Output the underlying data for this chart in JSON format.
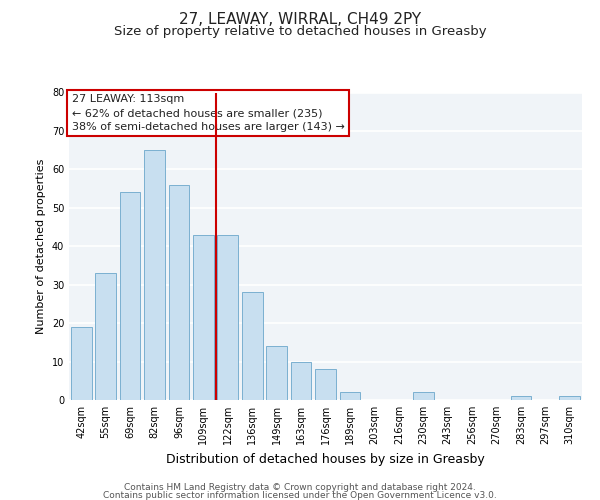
{
  "title": "27, LEAWAY, WIRRAL, CH49 2PY",
  "subtitle": "Size of property relative to detached houses in Greasby",
  "xlabel": "Distribution of detached houses by size in Greasby",
  "ylabel": "Number of detached properties",
  "categories": [
    "42sqm",
    "55sqm",
    "69sqm",
    "82sqm",
    "96sqm",
    "109sqm",
    "122sqm",
    "136sqm",
    "149sqm",
    "163sqm",
    "176sqm",
    "189sqm",
    "203sqm",
    "216sqm",
    "230sqm",
    "243sqm",
    "256sqm",
    "270sqm",
    "283sqm",
    "297sqm",
    "310sqm"
  ],
  "values": [
    19,
    33,
    54,
    65,
    56,
    43,
    43,
    28,
    14,
    10,
    8,
    2,
    0,
    0,
    2,
    0,
    0,
    0,
    1,
    0,
    1
  ],
  "bar_color": "#c8dff0",
  "bar_edge_color": "#7ab0d0",
  "vline_x_index": 5,
  "vline_color": "#cc0000",
  "annotation_line1": "27 LEAWAY: 113sqm",
  "annotation_line2": "← 62% of detached houses are smaller (235)",
  "annotation_line3": "38% of semi-detached houses are larger (143) →",
  "annotation_box_edge_color": "#cc0000",
  "ylim": [
    0,
    80
  ],
  "yticks": [
    0,
    10,
    20,
    30,
    40,
    50,
    60,
    70,
    80
  ],
  "background_color": "#f0f4f8",
  "grid_color": "#ffffff",
  "footer_line1": "Contains HM Land Registry data © Crown copyright and database right 2024.",
  "footer_line2": "Contains public sector information licensed under the Open Government Licence v3.0.",
  "title_fontsize": 11,
  "subtitle_fontsize": 9.5,
  "xlabel_fontsize": 9,
  "ylabel_fontsize": 8,
  "tick_fontsize": 7,
  "annotation_fontsize": 8,
  "footer_fontsize": 6.5
}
